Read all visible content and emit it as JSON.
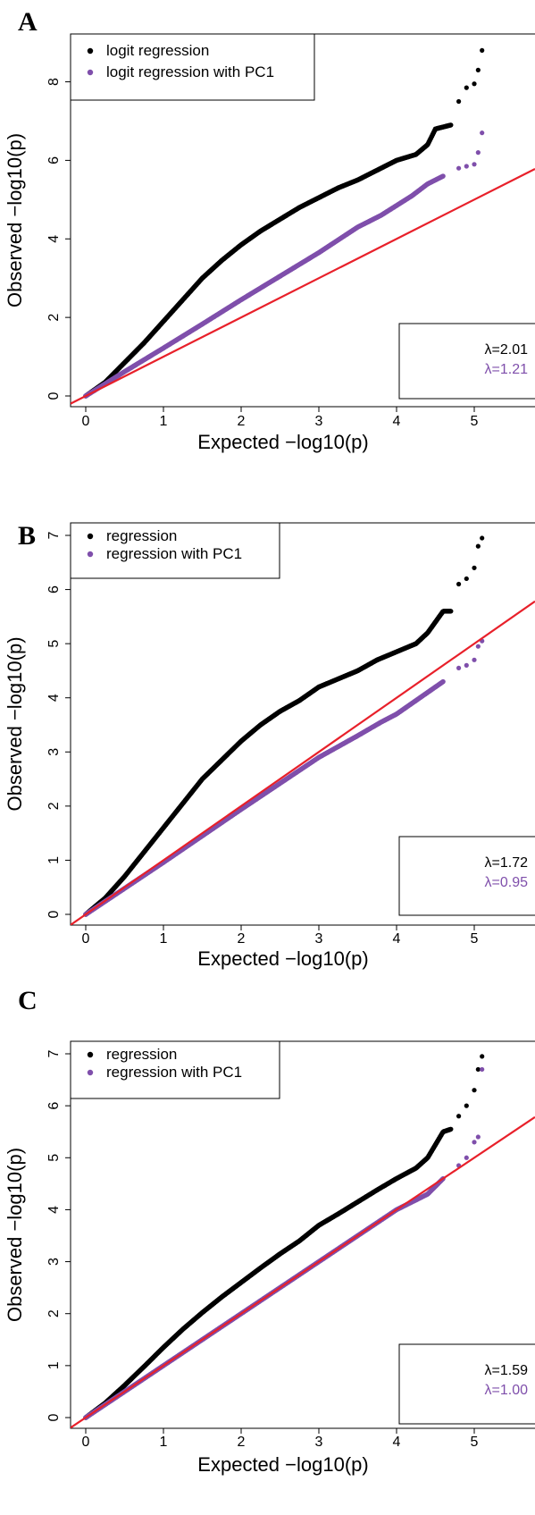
{
  "chart_data": [
    {
      "type": "scatter",
      "panel": "A",
      "xlabel": "Expected −log10(p)",
      "ylabel": "Observed −log10(p)",
      "xlim": [
        0,
        5.15
      ],
      "ylim": [
        0,
        8.9
      ],
      "xticks": [
        "0",
        "1",
        "2",
        "3",
        "4",
        "5"
      ],
      "yticks": [
        "0",
        "2",
        "4",
        "6",
        "8"
      ],
      "legend_position": "top-left",
      "reference_line": {
        "color": "#e8202a",
        "slope": 1,
        "intercept": 0
      },
      "series": [
        {
          "name": "logit regression",
          "color": "#000000",
          "x": [
            0,
            0.25,
            0.5,
            0.75,
            1.0,
            1.25,
            1.5,
            1.75,
            2.0,
            2.25,
            2.5,
            2.75,
            3.0,
            3.25,
            3.5,
            3.75,
            4.0,
            4.25,
            4.4,
            4.5,
            4.6,
            4.7,
            4.8,
            4.9,
            5.0,
            5.05,
            5.1
          ],
          "y": [
            0,
            0.35,
            0.85,
            1.35,
            1.9,
            2.45,
            3.0,
            3.45,
            3.85,
            4.2,
            4.5,
            4.8,
            5.05,
            5.3,
            5.5,
            5.75,
            6.0,
            6.15,
            6.4,
            6.8,
            6.85,
            6.9,
            7.5,
            7.85,
            7.95,
            8.3,
            8.8
          ]
        },
        {
          "name": "logit regression with PC1",
          "color": "#7f4fab",
          "x": [
            0,
            0.5,
            1.0,
            1.5,
            2.0,
            2.5,
            3.0,
            3.5,
            3.8,
            4.0,
            4.2,
            4.4,
            4.6,
            4.8,
            4.9,
            5.0,
            5.05,
            5.1
          ],
          "y": [
            0,
            0.62,
            1.22,
            1.83,
            2.45,
            3.05,
            3.65,
            4.3,
            4.6,
            4.85,
            5.1,
            5.4,
            5.6,
            5.8,
            5.85,
            5.9,
            6.2,
            6.7
          ]
        }
      ],
      "annotations": {
        "lambda_1": "λ=2.01",
        "lambda_2": "λ=1.21"
      }
    },
    {
      "type": "scatter",
      "panel": "B",
      "xlabel": "Expected −log10(p)",
      "ylabel": "Observed −log10(p)",
      "xlim": [
        0,
        5.15
      ],
      "ylim": [
        0,
        7
      ],
      "xticks": [
        "0",
        "1",
        "2",
        "3",
        "4",
        "5"
      ],
      "yticks": [
        "0",
        "1",
        "2",
        "3",
        "4",
        "5",
        "6",
        "7"
      ],
      "legend_position": "top-left",
      "reference_line": {
        "color": "#e8202a",
        "slope": 1,
        "intercept": 0
      },
      "series": [
        {
          "name": "regression",
          "color": "#000000",
          "x": [
            0,
            0.25,
            0.5,
            0.75,
            1.0,
            1.25,
            1.5,
            1.75,
            2.0,
            2.25,
            2.5,
            2.75,
            3.0,
            3.25,
            3.5,
            3.75,
            4.0,
            4.25,
            4.4,
            4.5,
            4.6,
            4.7,
            4.8,
            4.9,
            5.0,
            5.05,
            5.1
          ],
          "y": [
            0,
            0.3,
            0.7,
            1.15,
            1.6,
            2.05,
            2.5,
            2.85,
            3.2,
            3.5,
            3.75,
            3.95,
            4.2,
            4.35,
            4.5,
            4.7,
            4.85,
            5.0,
            5.2,
            5.4,
            5.6,
            5.6,
            6.1,
            6.2,
            6.4,
            6.8,
            6.95
          ]
        },
        {
          "name": "regression with PC1",
          "color": "#7f4fab",
          "x": [
            0,
            0.5,
            1.0,
            1.5,
            2.0,
            2.5,
            3.0,
            3.5,
            3.8,
            4.0,
            4.2,
            4.4,
            4.6,
            4.8,
            4.9,
            5.0,
            5.05,
            5.1
          ],
          "y": [
            0,
            0.48,
            0.96,
            1.45,
            1.94,
            2.42,
            2.9,
            3.3,
            3.55,
            3.7,
            3.9,
            4.1,
            4.3,
            4.55,
            4.6,
            4.7,
            4.95,
            5.05
          ]
        }
      ],
      "annotations": {
        "lambda_1": "λ=1.72",
        "lambda_2": "λ=0.95"
      }
    },
    {
      "type": "scatter",
      "panel": "C",
      "xlabel": "Expected −log10(p)",
      "ylabel": "Observed −log10(p)",
      "xlim": [
        0,
        5.15
      ],
      "ylim": [
        0,
        7
      ],
      "xticks": [
        "0",
        "1",
        "2",
        "3",
        "4",
        "5"
      ],
      "yticks": [
        "0",
        "1",
        "2",
        "3",
        "4",
        "5",
        "6",
        "7"
      ],
      "legend_position": "top-left",
      "reference_line": {
        "color": "#e8202a",
        "slope": 1,
        "intercept": 0
      },
      "series": [
        {
          "name": "regression",
          "color": "#000000",
          "x": [
            0,
            0.25,
            0.5,
            0.75,
            1.0,
            1.25,
            1.5,
            1.75,
            2.0,
            2.25,
            2.5,
            2.75,
            3.0,
            3.25,
            3.5,
            3.75,
            4.0,
            4.25,
            4.4,
            4.5,
            4.6,
            4.7,
            4.8,
            4.9,
            5.0,
            5.05,
            5.1
          ],
          "y": [
            0,
            0.28,
            0.62,
            0.98,
            1.35,
            1.7,
            2.02,
            2.32,
            2.6,
            2.88,
            3.15,
            3.4,
            3.7,
            3.92,
            4.15,
            4.38,
            4.6,
            4.8,
            5.0,
            5.25,
            5.5,
            5.55,
            5.8,
            6.0,
            6.3,
            6.7,
            6.95
          ]
        },
        {
          "name": "regression with PC1",
          "color": "#7f4fab",
          "x": [
            0,
            0.5,
            1.0,
            1.5,
            2.0,
            2.5,
            3.0,
            3.5,
            3.8,
            4.0,
            4.2,
            4.4,
            4.6,
            4.8,
            4.9,
            5.0,
            5.05,
            5.1
          ],
          "y": [
            0,
            0.5,
            1.0,
            1.5,
            2.0,
            2.5,
            3.0,
            3.5,
            3.8,
            4.0,
            4.15,
            4.3,
            4.6,
            4.85,
            5.0,
            5.3,
            5.4,
            6.7
          ]
        }
      ],
      "annotations": {
        "lambda_1": "λ=1.59",
        "lambda_2": "λ=1.00"
      }
    }
  ]
}
